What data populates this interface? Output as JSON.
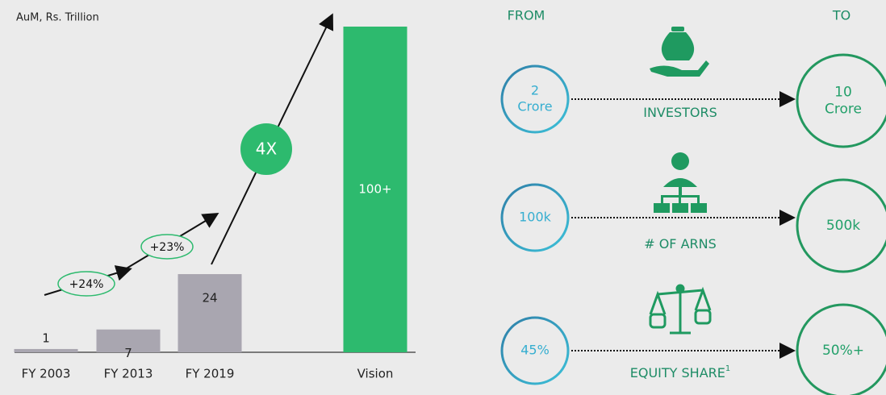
{
  "chart_data": {
    "type": "bar",
    "ylabel": "AuM, Rs. Trillion",
    "categories": [
      "FY 2003",
      "FY 2013",
      "FY 2019",
      "Vision"
    ],
    "values": [
      1,
      7,
      24,
      100
    ],
    "value_labels": [
      "1",
      "7",
      "24",
      "100+"
    ],
    "colors": [
      "#a9a6b0",
      "#a9a6b0",
      "#a9a6b0",
      "#2dba6e"
    ],
    "ylim": [
      0,
      100
    ],
    "annotations": [
      "+24%",
      "+23%",
      "4X"
    ]
  },
  "transitions": {
    "from_header": "FROM",
    "to_header": "TO",
    "items": [
      {
        "from": [
          "2",
          "Crore"
        ],
        "to": [
          "10",
          "Crore"
        ],
        "label": "INVESTORS"
      },
      {
        "from": [
          "100k"
        ],
        "to": [
          "500k"
        ],
        "label": "# OF ARNS"
      },
      {
        "from": [
          "45%"
        ],
        "to": [
          "50%+"
        ],
        "label": "EQUITY SHARE",
        "superscript": "1"
      }
    ]
  }
}
